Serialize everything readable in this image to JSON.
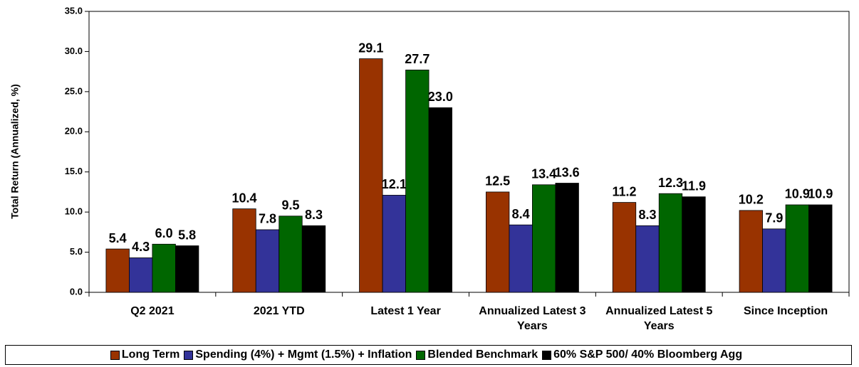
{
  "chart_data": {
    "type": "bar",
    "y_label": "Total Return (Annualized, %)",
    "categories": [
      "Q2 2021",
      "2021 YTD",
      "Latest 1 Year",
      "Annualized Latest 3 Years",
      "Annualized Latest 5 Years",
      "Since Inception"
    ],
    "series": [
      {
        "name": "Long Term",
        "color": "#993300",
        "values": [
          5.4,
          10.4,
          29.1,
          12.5,
          11.2,
          10.2
        ],
        "value_labels": [
          "5.4",
          "10.4",
          "29.1",
          "12.5",
          "11.2",
          "10.2"
        ]
      },
      {
        "name": "Spending (4%) + Mgmt (1.5%) + Inflation",
        "color": "#333399",
        "values": [
          4.3,
          7.8,
          12.1,
          8.4,
          8.3,
          7.9
        ],
        "value_labels": [
          "4.3",
          "7.8",
          "12.1",
          "8.4",
          "8.3",
          "7.9"
        ]
      },
      {
        "name": "Blended Benchmark",
        "color": "#006600",
        "values": [
          6.0,
          9.5,
          27.7,
          13.4,
          12.3,
          10.9
        ],
        "value_labels": [
          "6.0",
          "9.5",
          "27.7",
          "13.4",
          "12.3",
          "10.9"
        ]
      },
      {
        "name": "60% S&P 500/ 40% Bloomberg Agg",
        "color": "#000000",
        "values": [
          5.8,
          8.3,
          23.0,
          13.6,
          11.9,
          10.9
        ],
        "value_labels": [
          "5.8",
          "8.3",
          "23.0",
          "13.6",
          "11.9",
          "10.9"
        ]
      }
    ],
    "ylim": [
      0,
      35
    ],
    "yticks": [
      {
        "value": 0,
        "label": "0.0"
      },
      {
        "value": 5,
        "label": "5.0"
      },
      {
        "value": 10,
        "label": "10.0"
      },
      {
        "value": 15,
        "label": "15.0"
      },
      {
        "value": 20,
        "label": "20.0"
      },
      {
        "value": 25,
        "label": "25.0"
      },
      {
        "value": 30,
        "label": "30.0"
      },
      {
        "value": 35,
        "label": "35.0"
      }
    ],
    "grid": false,
    "legend": "bottom"
  }
}
